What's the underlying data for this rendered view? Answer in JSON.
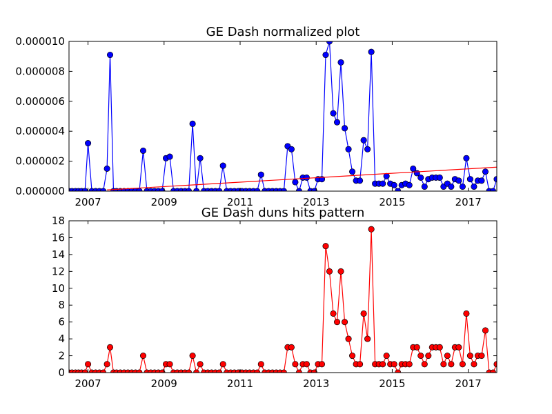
{
  "chart_data": [
    {
      "type": "line",
      "title": "GE Dash normalized plot",
      "xlabel": "",
      "ylabel": "",
      "xlim": [
        2006.5,
        2017.75
      ],
      "ylim": [
        0,
        1e-05
      ],
      "x_ticks": [
        2007,
        2009,
        2011,
        2013,
        2015,
        2017
      ],
      "x_tick_labels": [
        "2007",
        "2009",
        "2011",
        "2013",
        "2015",
        "2017"
      ],
      "y_ticks": [
        0,
        2e-06,
        4e-06,
        6e-06,
        8e-06,
        1e-05
      ],
      "y_tick_labels": [
        "0.000000",
        "0.000002",
        "0.000004",
        "0.000006",
        "0.000008",
        "0.000010"
      ],
      "grid": false,
      "series": [
        {
          "color": "#0000ff",
          "marker": "circle",
          "x": [
            2006.5,
            2006.58,
            2006.67,
            2006.75,
            2006.83,
            2006.92,
            2007.0,
            2007.1,
            2007.2,
            2007.3,
            2007.4,
            2007.5,
            2007.58,
            2007.67,
            2007.75,
            2007.85,
            2007.95,
            2008.05,
            2008.15,
            2008.25,
            2008.35,
            2008.45,
            2008.55,
            2008.65,
            2008.75,
            2008.85,
            2008.95,
            2009.05,
            2009.15,
            2009.25,
            2009.35,
            2009.45,
            2009.55,
            2009.65,
            2009.75,
            2009.85,
            2009.95,
            2010.05,
            2010.15,
            2010.25,
            2010.35,
            2010.45,
            2010.55,
            2010.65,
            2010.75,
            2010.85,
            2010.95,
            2011.05,
            2011.15,
            2011.25,
            2011.35,
            2011.45,
            2011.55,
            2011.65,
            2011.75,
            2011.85,
            2011.95,
            2012.05,
            2012.15,
            2012.25,
            2012.35,
            2012.45,
            2012.55,
            2012.65,
            2012.75,
            2012.85,
            2012.95,
            2013.05,
            2013.15,
            2013.25,
            2013.35,
            2013.45,
            2013.55,
            2013.65,
            2013.75,
            2013.85,
            2013.95,
            2014.05,
            2014.15,
            2014.25,
            2014.35,
            2014.45,
            2014.55,
            2014.65,
            2014.75,
            2014.85,
            2014.95,
            2015.05,
            2015.15,
            2015.25,
            2015.35,
            2015.45,
            2015.55,
            2015.65,
            2015.75,
            2015.85,
            2015.95,
            2016.05,
            2016.15,
            2016.25,
            2016.35,
            2016.45,
            2016.55,
            2016.65,
            2016.75,
            2016.85,
            2016.95,
            2017.05,
            2017.15,
            2017.25,
            2017.35,
            2017.45,
            2017.55,
            2017.65,
            2017.75
          ],
          "y": [
            0,
            0,
            0,
            0,
            0,
            0,
            3.2e-06,
            0,
            0,
            0,
            0,
            1.5e-06,
            9.1e-06,
            0,
            0,
            0,
            0,
            0,
            0,
            0,
            0,
            2.7e-06,
            0,
            0,
            0,
            0,
            0,
            2.2e-06,
            2.3e-06,
            0,
            0,
            0,
            0,
            0,
            4.5e-06,
            0,
            2.2e-06,
            0,
            0,
            0,
            0,
            0,
            1.7e-06,
            0,
            0,
            0,
            0,
            0,
            0,
            0,
            0,
            0,
            1.1e-06,
            0,
            0,
            0,
            0,
            0,
            0,
            3e-06,
            2.8e-06,
            6e-07,
            0,
            9e-07,
            9e-07,
            0,
            0,
            8e-07,
            8e-07,
            9.1e-06,
            1e-05,
            5.2e-06,
            4.6e-06,
            8.6e-06,
            4.2e-06,
            2.8e-06,
            1.3e-06,
            7e-07,
            7e-07,
            3.4e-06,
            2.8e-06,
            9.3e-06,
            5e-07,
            5e-07,
            5e-07,
            1e-06,
            5e-07,
            4e-07,
            0,
            4e-07,
            5e-07,
            4e-07,
            1.5e-06,
            1.2e-06,
            9e-07,
            3e-07,
            8e-07,
            9e-07,
            9e-07,
            9e-07,
            3e-07,
            5e-07,
            3e-07,
            8e-07,
            7e-07,
            3e-07,
            2.2e-06,
            8e-07,
            3e-07,
            7e-07,
            7e-07,
            1.3e-06,
            0,
            0,
            8e-07
          ]
        }
      ],
      "trendline": {
        "color": "#ff0000",
        "x": [
          2007.5,
          2017.75
        ],
        "y": [
          8e-08,
          1.6e-06
        ]
      }
    },
    {
      "type": "line",
      "title": "GE Dash duns hits pattern",
      "xlabel": "",
      "ylabel": "",
      "xlim": [
        2006.5,
        2017.75
      ],
      "ylim": [
        0,
        18
      ],
      "x_ticks": [
        2007,
        2009,
        2011,
        2013,
        2015,
        2017
      ],
      "x_tick_labels": [
        "2007",
        "2009",
        "2011",
        "2013",
        "2015",
        "2017"
      ],
      "y_ticks": [
        0,
        2,
        4,
        6,
        8,
        10,
        12,
        14,
        16,
        18
      ],
      "y_tick_labels": [
        "0",
        "2",
        "4",
        "6",
        "8",
        "10",
        "12",
        "14",
        "16",
        "18"
      ],
      "grid": false,
      "series": [
        {
          "color": "#ff0000",
          "marker": "circle",
          "x": [
            2006.5,
            2006.58,
            2006.67,
            2006.75,
            2006.83,
            2006.92,
            2007.0,
            2007.1,
            2007.2,
            2007.3,
            2007.4,
            2007.5,
            2007.58,
            2007.67,
            2007.75,
            2007.85,
            2007.95,
            2008.05,
            2008.15,
            2008.25,
            2008.35,
            2008.45,
            2008.55,
            2008.65,
            2008.75,
            2008.85,
            2008.95,
            2009.05,
            2009.15,
            2009.25,
            2009.35,
            2009.45,
            2009.55,
            2009.65,
            2009.75,
            2009.85,
            2009.95,
            2010.05,
            2010.15,
            2010.25,
            2010.35,
            2010.45,
            2010.55,
            2010.65,
            2010.75,
            2010.85,
            2010.95,
            2011.05,
            2011.15,
            2011.25,
            2011.35,
            2011.45,
            2011.55,
            2011.65,
            2011.75,
            2011.85,
            2011.95,
            2012.05,
            2012.15,
            2012.25,
            2012.35,
            2012.45,
            2012.55,
            2012.65,
            2012.75,
            2012.85,
            2012.95,
            2013.05,
            2013.15,
            2013.25,
            2013.35,
            2013.45,
            2013.55,
            2013.65,
            2013.75,
            2013.85,
            2013.95,
            2014.05,
            2014.15,
            2014.25,
            2014.35,
            2014.45,
            2014.55,
            2014.65,
            2014.75,
            2014.85,
            2014.95,
            2015.05,
            2015.15,
            2015.25,
            2015.35,
            2015.45,
            2015.55,
            2015.65,
            2015.75,
            2015.85,
            2015.95,
            2016.05,
            2016.15,
            2016.25,
            2016.35,
            2016.45,
            2016.55,
            2016.65,
            2016.75,
            2016.85,
            2016.95,
            2017.05,
            2017.15,
            2017.25,
            2017.35,
            2017.45,
            2017.55,
            2017.65,
            2017.75
          ],
          "y": [
            0,
            0,
            0,
            0,
            0,
            0,
            1,
            0,
            0,
            0,
            0,
            1,
            3,
            0,
            0,
            0,
            0,
            0,
            0,
            0,
            0,
            2,
            0,
            0,
            0,
            0,
            0,
            1,
            1,
            0,
            0,
            0,
            0,
            0,
            2,
            0,
            1,
            0,
            0,
            0,
            0,
            0,
            1,
            0,
            0,
            0,
            0,
            0,
            0,
            0,
            0,
            0,
            1,
            0,
            0,
            0,
            0,
            0,
            0,
            3,
            3,
            1,
            0,
            1,
            1,
            0,
            0,
            1,
            1,
            15,
            12,
            7,
            6,
            12,
            6,
            4,
            2,
            1,
            1,
            7,
            4,
            17,
            1,
            1,
            1,
            2,
            1,
            1,
            0,
            1,
            1,
            1,
            3,
            3,
            2,
            1,
            2,
            3,
            3,
            3,
            1,
            2,
            1,
            3,
            3,
            1,
            7,
            2,
            1,
            2,
            2,
            5,
            0,
            0,
            1
          ]
        }
      ]
    }
  ]
}
